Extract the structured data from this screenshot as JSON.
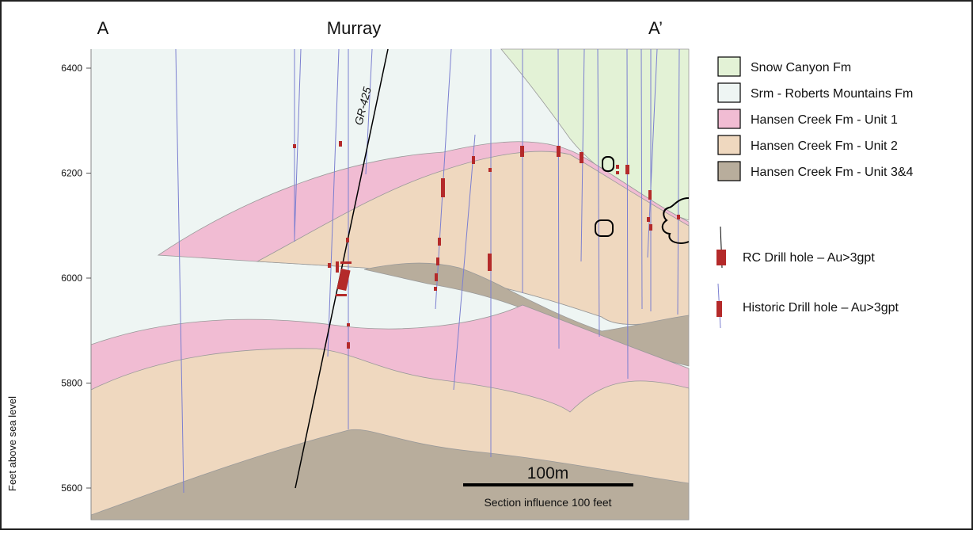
{
  "section": {
    "labels": {
      "left_end": "A",
      "center": "Murray",
      "right_end": "A’",
      "drill_hole": "GR-425"
    },
    "axis": {
      "label": "Feet above sea level",
      "ticks": [
        6400,
        6200,
        6000,
        5800,
        5600
      ]
    },
    "scale_bar": {
      "label": "100m",
      "note": "Section influence 100 feet"
    }
  },
  "legend": {
    "units": [
      {
        "label": "Snow Canyon Fm",
        "color": "#e3f2d6"
      },
      {
        "label": "Srm - Roberts Mountains Fm",
        "color": "#eef5f3"
      },
      {
        "label": "Hansen Creek Fm - Unit 1",
        "color": "#f1bcd3"
      },
      {
        "label": "Hansen Creek Fm - Unit 2",
        "color": "#efd8bf"
      },
      {
        "label": "Hansen Creek Fm - Unit 3&4",
        "color": "#b8ad9c"
      }
    ],
    "holes": [
      "RC Drill hole – Au>3gpt",
      "Historic Drill hole – Au>3gpt"
    ]
  }
}
